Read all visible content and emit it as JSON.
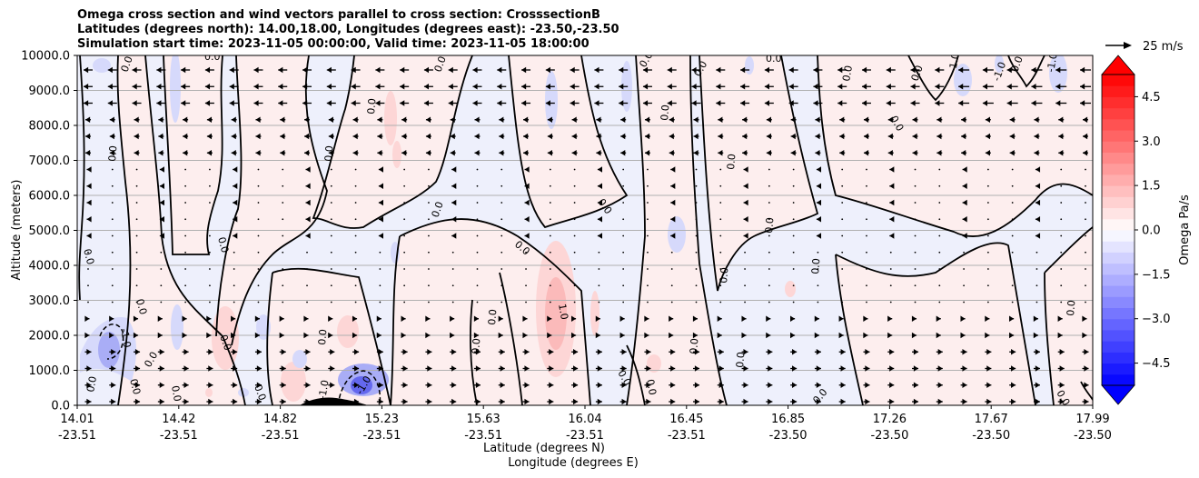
{
  "chart_data": {
    "type": "contour",
    "title_lines": [
      "Omega cross section and wind vectors parallel to cross section: CrosssectionB",
      "Latitudes (degrees north): 14.00,18.00, Longitudes (degrees east): -23.50,-23.50",
      "Simulation start time: 2023-11-05 00:00:00, Valid time: 2023-11-05 18:00:00"
    ],
    "ylabel": "Altitude (meters)",
    "xlabel_lat": "Latitude (degrees N)",
    "xlabel_lon": "Longitude (degrees E)",
    "ylim": [
      0,
      10000
    ],
    "y_ticks": [
      "0.0",
      "1000.0",
      "2000.0",
      "3000.0",
      "4000.0",
      "5000.0",
      "6000.0",
      "7000.0",
      "8000.0",
      "9000.0",
      "10000.0"
    ],
    "x_ticks": [
      {
        "lat": "14.01",
        "lon": "-23.51"
      },
      {
        "lat": "14.42",
        "lon": "-23.51"
      },
      {
        "lat": "14.82",
        "lon": "-23.51"
      },
      {
        "lat": "15.23",
        "lon": "-23.51"
      },
      {
        "lat": "15.63",
        "lon": "-23.51"
      },
      {
        "lat": "16.04",
        "lon": "-23.51"
      },
      {
        "lat": "16.45",
        "lon": "-23.51"
      },
      {
        "lat": "16.85",
        "lon": "-23.50"
      },
      {
        "lat": "17.26",
        "lon": "-23.50"
      },
      {
        "lat": "17.67",
        "lon": "-23.50"
      },
      {
        "lat": "17.99",
        "lon": "-23.50"
      }
    ],
    "colorbar": {
      "label": "Omega Pa/s",
      "range": [
        -5.25,
        5.25
      ],
      "step": 0.375,
      "tick_labels": [
        "4.5",
        "3.0",
        "1.5",
        "0.0",
        "−1.5",
        "−3.0",
        "−4.5"
      ],
      "tick_values": [
        4.5,
        3.0,
        1.5,
        0.0,
        -1.5,
        -3.0,
        -4.5
      ],
      "extend": "both"
    },
    "vector_key": "25 m/s",
    "contour_labels": [
      "0.0",
      "-1.0",
      "1.0"
    ],
    "grid": "horizontal",
    "colors": {
      "positive": "#ff0000",
      "negative": "#0000ff",
      "contour": "#000000",
      "grid": "#b0b0b0"
    }
  }
}
